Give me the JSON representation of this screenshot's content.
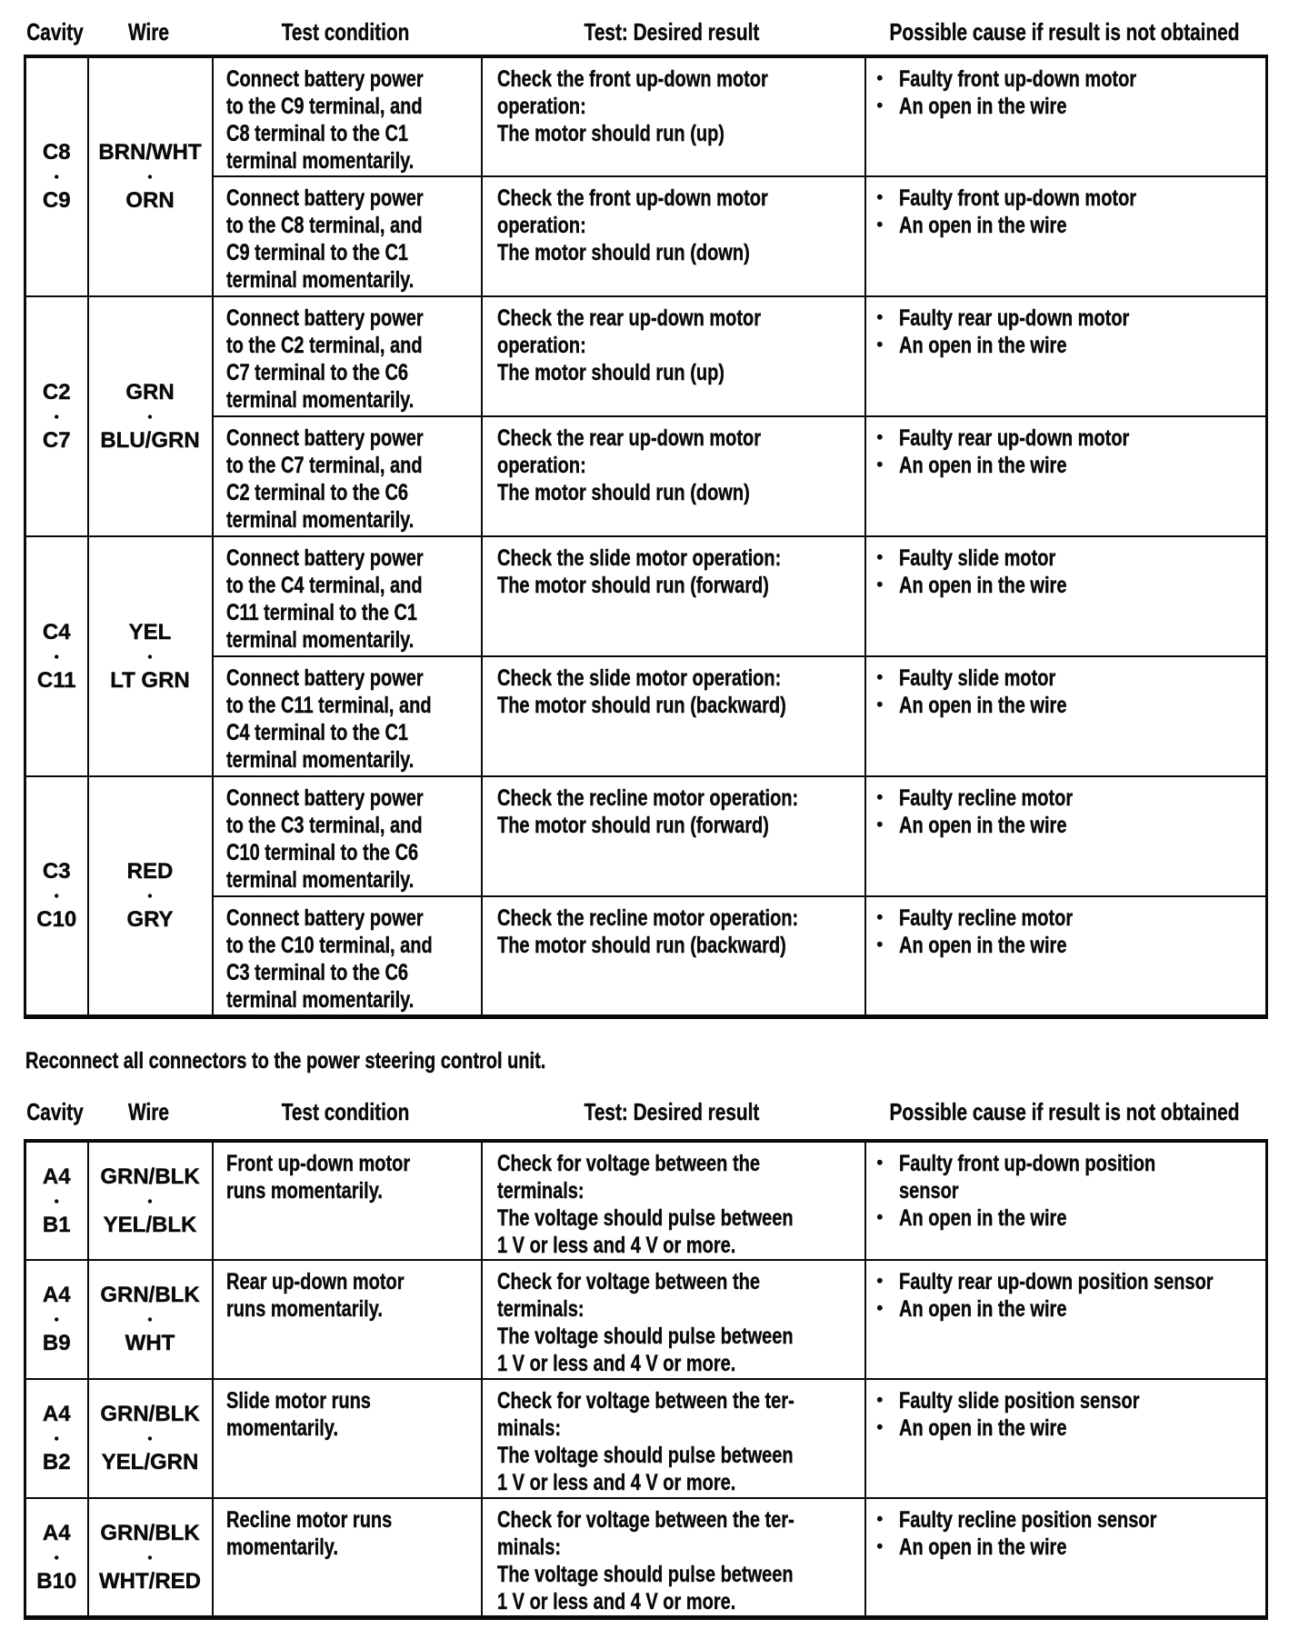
{
  "sep": "•",
  "note": "Reconnect all connectors to the power steering control unit.",
  "headers": {
    "cavity": "Cavity",
    "wire": "Wire",
    "condition": "Test condition",
    "result": "Test: Desired result",
    "cause": "Possible cause if result is not obtained"
  },
  "table1": {
    "groups": [
      {
        "cavity_top": "C8",
        "cavity_bottom": "C9",
        "wire_top": "BRN/WHT",
        "wire_bottom": "ORN",
        "rows": [
          {
            "condition": "Connect battery power\nto the C9 terminal, and\nC8 terminal to the C1\nterminal momentarily.",
            "result": "Check the front up-down motor\noperation:\nThe motor should run (up)",
            "causes": [
              "Faulty front up-down motor",
              "An open in the wire"
            ]
          },
          {
            "condition": "Connect battery power\nto the C8 terminal, and\nC9 terminal to the C1\nterminal momentarily.",
            "result": "Check the front up-down motor\noperation:\nThe motor should run (down)",
            "causes": [
              "Faulty front up-down motor",
              "An open in the wire"
            ]
          }
        ]
      },
      {
        "cavity_top": "C2",
        "cavity_bottom": "C7",
        "wire_top": "GRN",
        "wire_bottom": "BLU/GRN",
        "rows": [
          {
            "condition": "Connect battery power\nto the C2 terminal, and\nC7 terminal to the C6\nterminal momentarily.",
            "result": "Check the rear up-down motor\noperation:\nThe motor should run (up)",
            "causes": [
              "Faulty rear up-down motor",
              "An open in the wire"
            ]
          },
          {
            "condition": "Connect battery power\nto the C7 terminal, and\nC2 terminal to the C6\nterminal momentarily.",
            "result": "Check the rear up-down motor\noperation:\nThe motor should run (down)",
            "causes": [
              "Faulty rear up-down motor",
              "An open in the wire"
            ]
          }
        ]
      },
      {
        "cavity_top": "C4",
        "cavity_bottom": "C11",
        "wire_top": "YEL",
        "wire_bottom": "LT GRN",
        "rows": [
          {
            "condition": "Connect battery power\nto the C4 terminal, and\nC11 terminal to the C1\nterminal momentarily.",
            "result": "Check the slide motor operation:\nThe motor should run (forward)",
            "causes": [
              "Faulty slide motor",
              "An open in the wire"
            ]
          },
          {
            "condition": "Connect battery power\nto the C11 terminal, and\nC4 terminal to the C1\nterminal momentarily.",
            "result": "Check the slide motor operation:\nThe motor should run (backward)",
            "causes": [
              "Faulty slide motor",
              "An open in the wire"
            ]
          }
        ]
      },
      {
        "cavity_top": "C3",
        "cavity_bottom": "C10",
        "wire_top": "RED",
        "wire_bottom": "GRY",
        "rows": [
          {
            "condition": "Connect battery power\nto the C3 terminal, and\nC10 terminal to the C6\nterminal momentarily.",
            "result": "Check the recline motor operation:\nThe motor should run (forward)",
            "causes": [
              "Faulty recline motor",
              "An open in the wire"
            ]
          },
          {
            "condition": "Connect battery power\nto the C10 terminal, and\nC3 terminal to the C6\nterminal momentarily.",
            "result": "Check the recline motor operation:\nThe motor should run (backward)",
            "causes": [
              "Faulty recline motor",
              "An open in the wire"
            ]
          }
        ]
      }
    ]
  },
  "table2": {
    "rows": [
      {
        "cavity_top": "A4",
        "cavity_bottom": "B1",
        "wire_top": "GRN/BLK",
        "wire_bottom": "YEL/BLK",
        "condition": "Front up-down motor\nruns momentarily.",
        "result": "Check for voltage between the\nterminals:\nThe voltage should pulse between\n1 V or less and 4 V or more.",
        "causes": [
          "Faulty front up-down position\nsensor",
          "An open in the wire"
        ]
      },
      {
        "cavity_top": "A4",
        "cavity_bottom": "B9",
        "wire_top": "GRN/BLK",
        "wire_bottom": "WHT",
        "condition": "Rear up-down motor\nruns momentarily.",
        "result": "Check for voltage between the\nterminals:\nThe voltage should pulse between\n1 V or less and 4 V or more.",
        "causes": [
          "Faulty rear up-down position sensor",
          "An open in the wire"
        ]
      },
      {
        "cavity_top": "A4",
        "cavity_bottom": "B2",
        "wire_top": "GRN/BLK",
        "wire_bottom": "YEL/GRN",
        "condition": "Slide motor runs\nmomentarily.",
        "result": "Check for voltage between the ter-\nminals:\nThe voltage should pulse between\n1 V or less and 4 V or more.",
        "causes": [
          "Faulty slide position sensor",
          "An open in the wire"
        ]
      },
      {
        "cavity_top": "A4",
        "cavity_bottom": "B10",
        "wire_top": "GRN/BLK",
        "wire_bottom": "WHT/RED",
        "condition": "Recline motor runs\nmomentarily.",
        "result": "Check for voltage between the ter-\nminals:\nThe voltage should pulse between\n1 V or less and 4 V or more.",
        "causes": [
          "Faulty recline position sensor",
          "An open in the wire"
        ]
      }
    ]
  }
}
